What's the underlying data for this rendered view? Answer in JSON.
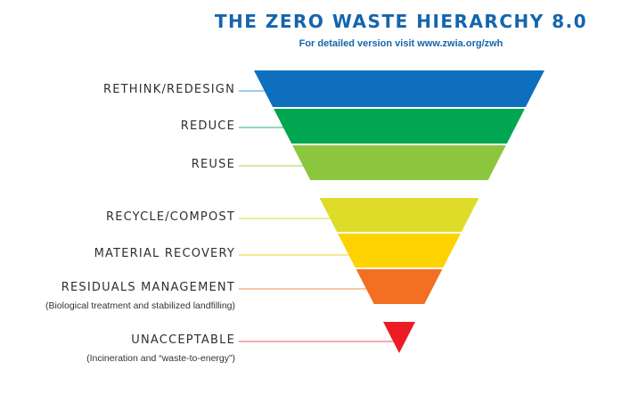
{
  "header": {
    "title": "THE ZERO WASTE HIERARCHY 8.0",
    "subtitle": "For detailed version visit www.zwia.org/zwh"
  },
  "levels": [
    {
      "label": "RETHINK/REDESIGN",
      "note": "",
      "color": "#0d6fbe",
      "line_color": "#3a9ad9"
    },
    {
      "label": "REDUCE",
      "note": "",
      "color": "#00a651",
      "line_color": "#2bb06a"
    },
    {
      "label": "REUSE",
      "note": "",
      "color": "#8cc63f",
      "line_color": "#a6d05a"
    },
    {
      "label": "RECYCLE/COMPOST",
      "note": "",
      "color": "#dedc28",
      "line_color": "#dedc28"
    },
    {
      "label": "MATERIAL RECOVERY",
      "note": "",
      "color": "#fdd200",
      "line_color": "#f5cf1c"
    },
    {
      "label": "RESIDUALS MANAGEMENT",
      "note": "(Biological treatment and stabilized landfilling)",
      "color": "#f36f21",
      "line_color": "#f38a4c"
    },
    {
      "label": "UNACCEPTABLE",
      "note": "(Incineration and “waste-to-energy”)",
      "color": "#ec1c24",
      "line_color": "#ee5a5f"
    }
  ]
}
